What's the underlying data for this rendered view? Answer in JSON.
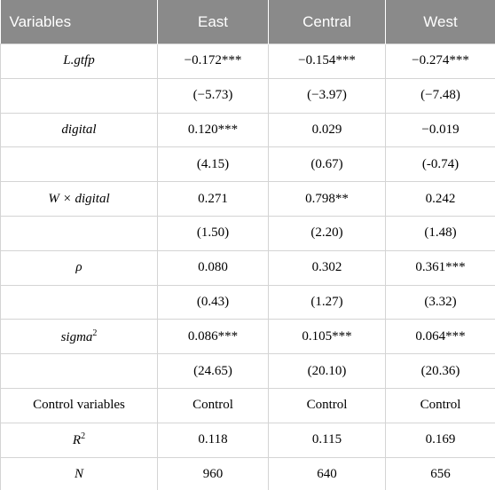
{
  "table": {
    "header": [
      "Variables",
      "East",
      "Central",
      "West"
    ],
    "rows": [
      [
        {
          "base": "L.gtfp"
        },
        "−0.172***",
        "−0.154***",
        "−0.274***"
      ],
      [
        {
          "base": ""
        },
        "(−5.73)",
        "(−3.97)",
        "(−7.48)"
      ],
      [
        {
          "base": "digital"
        },
        "0.120***",
        "0.029",
        "−0.019"
      ],
      [
        {
          "base": ""
        },
        "(4.15)",
        "(0.67)",
        "(-0.74)"
      ],
      [
        {
          "base": "W × digital"
        },
        "0.271",
        "0.798**",
        "0.242"
      ],
      [
        {
          "base": ""
        },
        "(1.50)",
        "(2.20)",
        "(1.48)"
      ],
      [
        {
          "base": "ρ"
        },
        "0.080",
        "0.302",
        "0.361***"
      ],
      [
        {
          "base": ""
        },
        "(0.43)",
        "(1.27)",
        "(3.32)"
      ],
      [
        {
          "base": "sigma",
          "sup": "2"
        },
        "0.086***",
        "0.105***",
        "0.064***"
      ],
      [
        {
          "base": ""
        },
        "(24.65)",
        "(20.10)",
        "(20.36)"
      ],
      [
        {
          "base": "Control variables",
          "plain": true
        },
        "Control",
        "Control",
        "Control"
      ],
      [
        {
          "base": "R",
          "sup": "2"
        },
        "0.118",
        "0.115",
        "0.169"
      ],
      [
        {
          "base": "N"
        },
        "960",
        "640",
        "656"
      ]
    ]
  }
}
